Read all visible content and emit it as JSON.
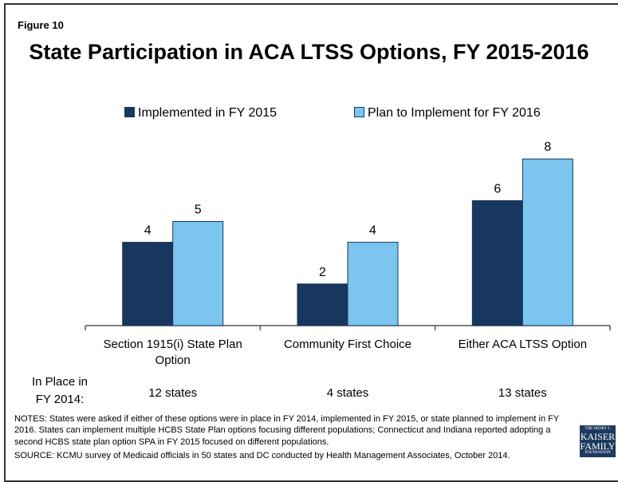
{
  "figure_label": "Figure 10",
  "chart_data": {
    "type": "bar",
    "title": "State Participation in ACA LTSS Options, FY 2015-2016",
    "categories": [
      "Section 1915(i) State Plan Option",
      "Community First Choice",
      "Either ACA LTSS Option"
    ],
    "series": [
      {
        "name": "Implemented in FY 2015",
        "color": "#17375e",
        "values": [
          4,
          2,
          6
        ]
      },
      {
        "name": "Plan to Implement for FY 2016",
        "color": "#7cc5ee",
        "values": [
          5,
          4,
          8
        ]
      }
    ],
    "legend": "top"
  },
  "in_place": {
    "label": "In Place in FY 2014:",
    "values": [
      "12 states",
      "4 states",
      "13 states"
    ]
  },
  "notes": "NOTES: States were asked if either of these options were in place in FY 2014, implemented in FY 2015, or state planned to implement in FY 2016. States can implement multiple HCBS State Plan options focusing different populations; Connecticut and Indiana reported adopting a second HCBS state plan option  SPA in FY 2015 focused on different populations.",
  "source": "SOURCE: KCMU survey of Medicaid officials in 50 states and DC conducted by Health Management Associates, October 2014.",
  "logo": [
    "THE HENRY J.",
    "KAISER",
    "FAMILY",
    "FOUNDATION"
  ]
}
